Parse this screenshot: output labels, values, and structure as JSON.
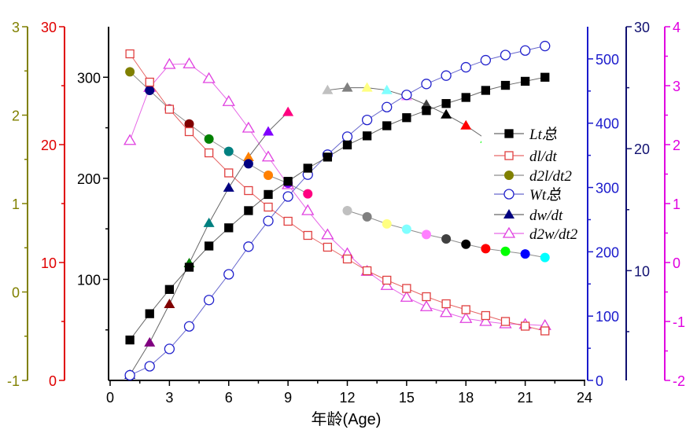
{
  "chart_data": {
    "type": "line",
    "xlabel": "年龄(Age)",
    "xlim": [
      0,
      24
    ],
    "xticks": [
      0,
      3,
      6,
      9,
      12,
      15,
      18,
      21,
      24
    ],
    "x": [
      1,
      2,
      3,
      4,
      5,
      6,
      7,
      8,
      9,
      10,
      11,
      12,
      13,
      14,
      15,
      16,
      17,
      18,
      19,
      20,
      21,
      22
    ],
    "point_colors": [
      "#808000",
      "#000080",
      "#800080",
      "#800000",
      "#008000",
      "#008080",
      "#000080",
      "#ff8000",
      "#8000ff",
      "#ff0080",
      "#ffffff",
      "#c0c0c0",
      "#808080",
      "#ffff80",
      "#80ffff",
      "#ff80ff",
      "#404040",
      "#000000",
      "#ff0000",
      "#00ff00",
      "#0000ff",
      "#00ffff"
    ],
    "axes": [
      {
        "id": "lt",
        "color": "#000000",
        "ylim": [
          0,
          350
        ],
        "ticks": [
          100,
          200,
          300
        ],
        "tick_labels": [
          "100",
          "200",
          "300"
        ],
        "zero_label": "0"
      },
      {
        "id": "dl",
        "color": "#e00000",
        "ylim": [
          0,
          30
        ],
        "ticks": [
          0,
          10,
          20,
          30
        ],
        "tick_labels": [
          "0",
          "10",
          "20",
          "30"
        ]
      },
      {
        "id": "d2l",
        "color": "#808000",
        "ylim": [
          -1,
          3
        ],
        "ticks": [
          -1,
          0,
          1,
          2,
          3
        ],
        "tick_labels": [
          "-1",
          "0",
          "1",
          "2",
          "3"
        ]
      },
      {
        "id": "wt",
        "color": "#1a1acc",
        "ylim": [
          0,
          550
        ],
        "ticks": [
          0,
          100,
          200,
          300,
          400,
          500
        ],
        "tick_labels": [
          "0",
          "100",
          "200",
          "300",
          "400",
          "500"
        ]
      },
      {
        "id": "dw",
        "color": "#101070",
        "ylim": [
          1,
          30
        ],
        "ticks": [
          10,
          20,
          30
        ],
        "tick_labels": [
          "10",
          "20",
          "30"
        ]
      },
      {
        "id": "d2w",
        "color": "#e000e0",
        "ylim": [
          -2,
          4
        ],
        "ticks": [
          -2,
          -1,
          0,
          1,
          2,
          3,
          4
        ],
        "tick_labels": [
          "-2",
          "-1",
          "0",
          "1",
          "2",
          "3",
          "4"
        ]
      }
    ],
    "series": [
      {
        "name": "Lt",
        "subscript": "总",
        "axis": "lt",
        "marker": "square-filled",
        "color": "#000000",
        "line": "#404040",
        "values": [
          40,
          66,
          90,
          112,
          133,
          151,
          168,
          184,
          197,
          210,
          221,
          233,
          242,
          252,
          260,
          267,
          274,
          280,
          287,
          292,
          296,
          300
        ]
      },
      {
        "name": "dl/dt",
        "axis": "dl",
        "marker": "square-open",
        "color": "#e04040",
        "line": "#e04040",
        "values": [
          27.7,
          25.3,
          23.0,
          21.1,
          19.3,
          17.6,
          16.1,
          14.7,
          13.5,
          12.3,
          11.3,
          10.3,
          9.3,
          8.5,
          7.8,
          7.1,
          6.5,
          6.0,
          5.5,
          5.0,
          4.6,
          4.2
        ]
      },
      {
        "name": "d2l/dt2",
        "axis": "d2l",
        "marker": "circle-multicolor",
        "color": "#808000",
        "line": "#707070",
        "values": [
          2.49,
          2.28,
          2.07,
          1.9,
          1.73,
          1.59,
          1.45,
          1.32,
          1.23,
          1.11,
          null,
          0.92,
          0.85,
          0.77,
          0.71,
          0.65,
          0.6,
          0.54,
          0.49,
          0.46,
          0.43,
          0.39
        ]
      },
      {
        "name": "Wt",
        "subscript": "总",
        "axis": "wt",
        "marker": "circle-open",
        "color": "#2020cc",
        "line": "#4040c0",
        "values": [
          8,
          22,
          49,
          84,
          125,
          165,
          208,
          248,
          286,
          320,
          351,
          379,
          405,
          425,
          444,
          461,
          474,
          487,
          498,
          506,
          513,
          520
        ]
      },
      {
        "name": "dw/dt",
        "axis": "dw",
        "marker": "triangle-multicolor",
        "color": "#000080",
        "line": "#404040",
        "color_offset": 1,
        "values": [
          1.45,
          4.1,
          7.25,
          10.6,
          13.9,
          16.8,
          19.3,
          21.4,
          23.0,
          null,
          24.8,
          25.0,
          25.0,
          24.8,
          24.3,
          23.6,
          22.8,
          21.9,
          20.8,
          null,
          null,
          null
        ]
      },
      {
        "name": "d2w/dt2",
        "axis": "d2w",
        "marker": "triangle-open",
        "color": "#e040e0",
        "line": "#e040e0",
        "values": [
          2.07,
          2.97,
          3.36,
          3.37,
          3.12,
          2.73,
          2.28,
          1.79,
          1.32,
          0.88,
          0.47,
          0.15,
          -0.15,
          -0.39,
          -0.59,
          -0.75,
          -0.85,
          -0.95,
          -1.0,
          -1.04,
          -1.05,
          -1.07
        ]
      }
    ],
    "legend": {
      "placement": "right-center",
      "entries": [
        "Lt总",
        "dl/dt",
        "d2l/dt2",
        "Wt总",
        "dw/dt",
        "d2w/dt2"
      ]
    },
    "grid": false
  }
}
